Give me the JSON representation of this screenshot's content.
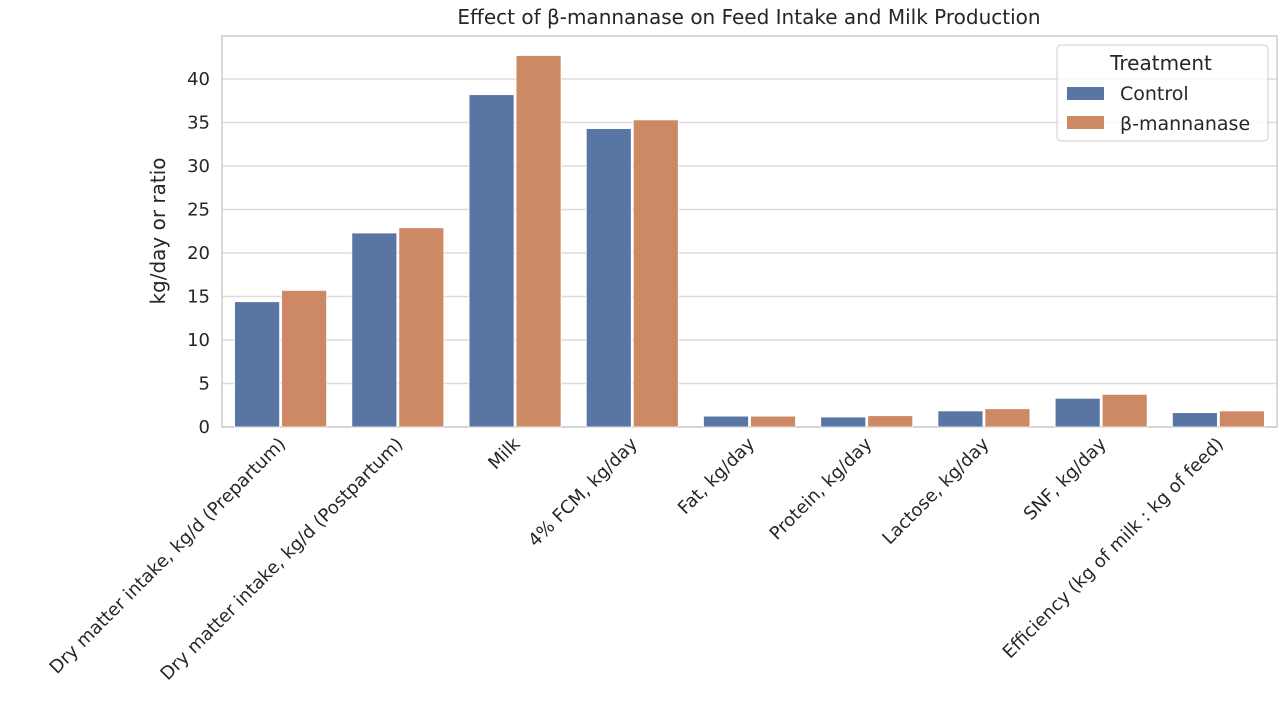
{
  "chart_data": {
    "type": "bar",
    "title": "Effect of β-mannanase on Feed Intake and Milk Production",
    "xlabel": "",
    "ylabel": "kg/day or ratio",
    "ylim": [
      0,
      45
    ],
    "yticks": [
      0,
      5,
      10,
      15,
      20,
      25,
      30,
      35,
      40
    ],
    "grid": true,
    "legend_title": "Treatment",
    "legend_position": "top-right",
    "categories": [
      "Dry matter intake, kg/d (Prepartum)",
      "Dry matter intake, kg/d (Postpartum)",
      "Milk",
      "4% FCM, kg/day",
      "Fat, kg/day",
      "Protein, kg/day",
      "Lactose, kg/day",
      "SNF, kg/day",
      "Efficiency (kg of milk : kg of feed)"
    ],
    "series": [
      {
        "name": "Control",
        "color": "#5975a4",
        "values": [
          14.4,
          22.3,
          38.2,
          34.3,
          1.25,
          1.15,
          1.85,
          3.3,
          1.65
        ]
      },
      {
        "name": "β-mannanase",
        "color": "#cc8963",
        "values": [
          15.7,
          22.9,
          42.7,
          35.3,
          1.25,
          1.3,
          2.1,
          3.75,
          1.85
        ]
      }
    ]
  }
}
